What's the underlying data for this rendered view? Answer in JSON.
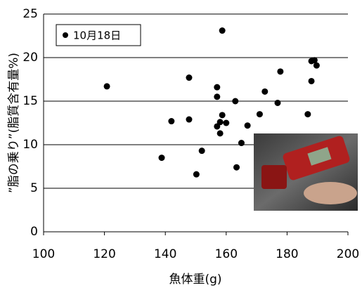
{
  "chart_data": {
    "type": "scatter",
    "xlabel": "魚体重(g)",
    "ylabel": "”脂の乗り”(脂質含有量%)",
    "xlim": [
      100,
      200
    ],
    "xticks": [
      100,
      120,
      140,
      160,
      180,
      200
    ],
    "ylim": [
      0,
      25
    ],
    "yticks": [
      0,
      5,
      10,
      15,
      20,
      25
    ],
    "grid": true,
    "legend": "upper left",
    "series": [
      {
        "name": "10月18日",
        "color": "#000000",
        "x": [
          120.8,
          158.7,
          147.8,
          157,
          157,
          163,
          172.7,
          177.8,
          188,
          189,
          189.7,
          188,
          176.9,
          142,
          147.8,
          158.7,
          157,
          158,
          160,
          158,
          167,
          171,
          186.8,
          138.8,
          152,
          165,
          150.2,
          163.4
        ],
        "values": [
          16.7,
          23.1,
          17.7,
          16.6,
          15.5,
          15.0,
          16.1,
          18.4,
          19.6,
          19.7,
          19.1,
          17.3,
          14.8,
          12.7,
          12.9,
          13.4,
          12.1,
          12.6,
          12.5,
          11.3,
          12.2,
          13.5,
          13.5,
          8.5,
          9.3,
          10.2,
          6.6,
          7.4
        ]
      }
    ]
  }
}
